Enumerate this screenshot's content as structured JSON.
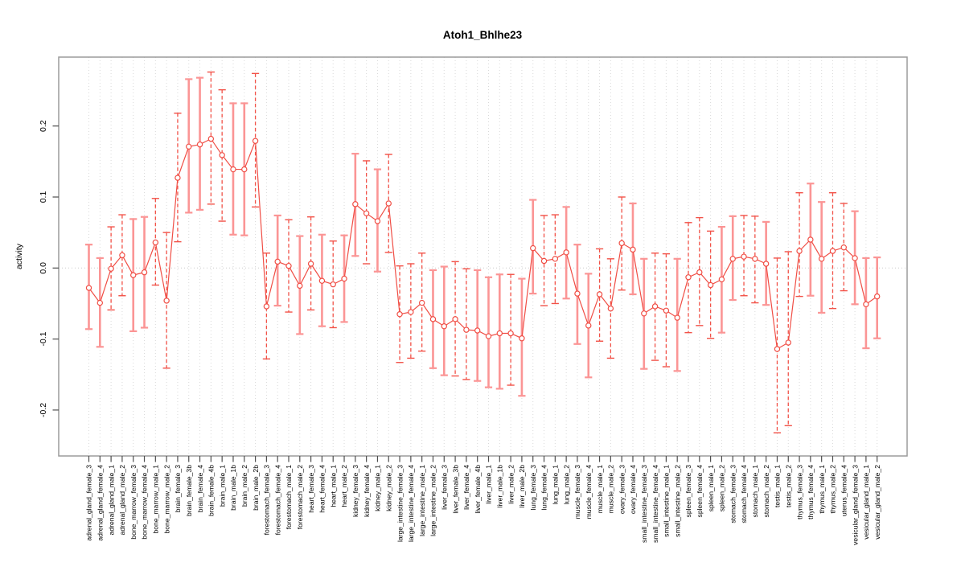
{
  "chart_data": {
    "type": "line",
    "subtype": "points-with-error-bars",
    "title": "Atoh1_Bhlhe23",
    "xlabel": "",
    "ylabel": "activity",
    "ylim": [
      -0.265,
      0.297
    ],
    "ytick_values": [
      -0.2,
      -0.1,
      0.0,
      0.1,
      0.2
    ],
    "ytick_labels": [
      "-0.2",
      "-0.1",
      "0.0",
      "0.1",
      "0.2"
    ],
    "grid": "dotted vertical line per category; dotted horizontal line at 0",
    "legend_position": "none",
    "marker": "open-circle",
    "colors": {
      "point_line": "#f04e45",
      "bar_solid": "#fb9595",
      "bar_dashed": "#f25248",
      "frame": "#9c9c9c",
      "grid": "#d9d9d9",
      "zero_line": "#cccccc",
      "tick": "#4d4d4d",
      "text": "#000000",
      "background": "#ffffff"
    },
    "categories": [
      "adrenal_gland_female_3",
      "adrenal_gland_female_4",
      "adrenal_gland_male_1",
      "adrenal_gland_male_2",
      "bone_marrow_female_3",
      "bone_marrow_female_4",
      "bone_marrow_male_1",
      "bone_marrow_male_2",
      "brain_female_3",
      "brain_female_3b",
      "brain_female_4",
      "brain_female_4b",
      "brain_male_1",
      "brain_male_1b",
      "brain_male_2",
      "brain_male_2b",
      "forestomach_female_3",
      "forestomach_female_4",
      "forestomach_male_1",
      "forestomach_male_2",
      "heart_female_3",
      "heart_female_4",
      "heart_male_1",
      "heart_male_2",
      "kidney_female_3",
      "kidney_female_4",
      "kidney_male_1",
      "kidney_male_2",
      "large_intestine_female_3",
      "large_intestine_female_4",
      "large_intestine_male_1",
      "large_intestine_male_2",
      "liver_female_3",
      "liver_female_3b",
      "liver_female_4",
      "liver_female_4b",
      "liver_male_1",
      "liver_male_1b",
      "liver_male_2",
      "liver_male_2b",
      "lung_female_3",
      "lung_female_4",
      "lung_male_1",
      "lung_male_2",
      "muscle_female_3",
      "muscle_female_4",
      "muscle_male_1",
      "muscle_male_2",
      "ovary_female_3",
      "ovary_female_4",
      "small_intestine_female_3",
      "small_intestine_female_4",
      "small_intestine_male_1",
      "small_intestine_male_2",
      "spleen_female_3",
      "spleen_female_4",
      "spleen_male_1",
      "spleen_male_2",
      "stomach_female_3",
      "stomach_female_4",
      "stomach_male_1",
      "stomach_male_2",
      "testis_male_1",
      "testis_male_2",
      "thymus_female_3",
      "thymus_female_4",
      "thymus_male_1",
      "thymus_male_2",
      "uterus_female_4",
      "vesicular_gland_female_3",
      "vesicular_gland_male_1",
      "vesicular_gland_male_2"
    ],
    "values": [
      -0.028,
      -0.049,
      -0.001,
      0.018,
      -0.01,
      -0.006,
      0.036,
      -0.046,
      0.127,
      0.171,
      0.174,
      0.182,
      0.159,
      0.139,
      0.139,
      0.179,
      -0.054,
      0.009,
      0.003,
      -0.025,
      0.006,
      -0.018,
      -0.023,
      -0.015,
      0.09,
      0.077,
      0.066,
      0.091,
      -0.065,
      -0.062,
      -0.049,
      -0.072,
      -0.082,
      -0.072,
      -0.087,
      -0.088,
      -0.096,
      -0.092,
      -0.092,
      -0.099,
      0.028,
      0.01,
      0.013,
      0.022,
      -0.036,
      -0.081,
      -0.037,
      -0.057,
      0.035,
      0.026,
      -0.064,
      -0.054,
      -0.06,
      -0.07,
      -0.013,
      -0.006,
      -0.024,
      -0.016,
      0.013,
      0.016,
      0.013,
      0.006,
      -0.114,
      -0.105,
      0.024,
      0.04,
      0.013,
      0.024,
      0.029,
      0.014,
      -0.051,
      -0.04
    ],
    "ci_low": [
      -0.086,
      -0.111,
      -0.059,
      -0.039,
      -0.089,
      -0.084,
      -0.024,
      -0.141,
      0.037,
      0.078,
      0.082,
      0.09,
      0.066,
      0.047,
      0.046,
      0.086,
      -0.128,
      -0.053,
      -0.062,
      -0.093,
      -0.059,
      -0.082,
      -0.084,
      -0.076,
      0.017,
      0.006,
      -0.005,
      0.022,
      -0.133,
      -0.127,
      -0.117,
      -0.141,
      -0.151,
      -0.152,
      -0.157,
      -0.159,
      -0.168,
      -0.17,
      -0.165,
      -0.18,
      -0.036,
      -0.053,
      -0.05,
      -0.043,
      -0.107,
      -0.154,
      -0.103,
      -0.127,
      -0.031,
      -0.037,
      -0.142,
      -0.13,
      -0.139,
      -0.145,
      -0.091,
      -0.081,
      -0.099,
      -0.091,
      -0.045,
      -0.039,
      -0.049,
      -0.052,
      -0.232,
      -0.222,
      -0.04,
      -0.039,
      -0.063,
      -0.057,
      -0.032,
      -0.051,
      -0.113,
      -0.099
    ],
    "ci_high": [
      0.033,
      0.014,
      0.058,
      0.075,
      0.069,
      0.072,
      0.098,
      0.05,
      0.218,
      0.266,
      0.268,
      0.276,
      0.251,
      0.232,
      0.232,
      0.274,
      0.021,
      0.074,
      0.068,
      0.045,
      0.072,
      0.047,
      0.038,
      0.046,
      0.161,
      0.151,
      0.139,
      0.16,
      0.003,
      0.006,
      0.021,
      -0.003,
      0.002,
      0.009,
      -0.001,
      -0.003,
      -0.013,
      -0.009,
      -0.009,
      -0.015,
      0.096,
      0.074,
      0.075,
      0.086,
      0.033,
      -0.008,
      0.027,
      0.013,
      0.1,
      0.091,
      0.013,
      0.021,
      0.02,
      0.013,
      0.064,
      0.071,
      0.052,
      0.058,
      0.073,
      0.074,
      0.073,
      0.065,
      0.014,
      0.023,
      0.106,
      0.119,
      0.093,
      0.106,
      0.091,
      0.08,
      0.014,
      0.015
    ],
    "bar_style": [
      "solid",
      "solid",
      "dashed",
      "dashed",
      "solid",
      "solid",
      "dashed",
      "dashed",
      "dashed",
      "solid",
      "solid",
      "dashed",
      "dashed",
      "solid",
      "solid",
      "dashed",
      "dashed",
      "solid",
      "dashed",
      "solid",
      "dashed",
      "solid",
      "dashed",
      "solid",
      "solid",
      "dashed",
      "solid",
      "dashed",
      "dashed",
      "dashed",
      "dashed",
      "solid",
      "solid",
      "dashed",
      "dashed",
      "solid",
      "solid",
      "solid",
      "dashed",
      "solid",
      "solid",
      "dashed",
      "dashed",
      "solid",
      "solid",
      "solid",
      "dashed",
      "dashed",
      "dashed",
      "solid",
      "solid",
      "dashed",
      "dashed",
      "solid",
      "dashed",
      "dashed",
      "dashed",
      "solid",
      "solid",
      "dashed",
      "dashed",
      "solid",
      "dashed",
      "dashed",
      "dashed",
      "solid",
      "solid",
      "dashed",
      "dashed",
      "solid",
      "solid",
      "solid"
    ]
  }
}
